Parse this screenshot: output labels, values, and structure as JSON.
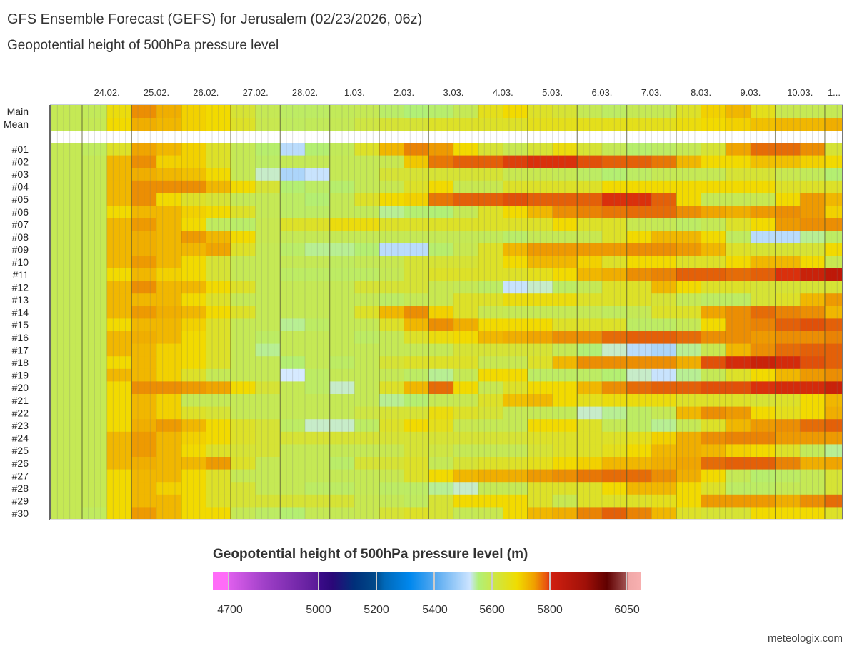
{
  "header": {
    "title": "GFS Ensemble Forecast (GEFS) for Jerusalem (02/23/2026, 06z)",
    "subtitle": "Geopotential height of 500hPa pressure level"
  },
  "footer": {
    "credit": "meteologix.com"
  },
  "chart_data": {
    "type": "heatmap",
    "title": "Geopotential height of 500hPa pressure level (m)",
    "x_tick_labels": [
      "24.02.",
      "25.02.",
      "26.02.",
      "27.02.",
      "28.02.",
      "1.03.",
      "2.03.",
      "3.03.",
      "4.03.",
      "5.03.",
      "6.03.",
      "7.03.",
      "8.03.",
      "9.03.",
      "10.03.",
      "1..."
    ],
    "row_labels": [
      "Main",
      "Mean",
      "#01",
      "#02",
      "#03",
      "#04",
      "#05",
      "#06",
      "#07",
      "#08",
      "#09",
      "#10",
      "#11",
      "#12",
      "#13",
      "#14",
      "#15",
      "#16",
      "#17",
      "#18",
      "#19",
      "#20",
      "#21",
      "#22",
      "#23",
      "#24",
      "#25",
      "#26",
      "#27",
      "#28",
      "#29",
      "#30"
    ],
    "time_resolution": "12-hourly blocks from 23.02. 06z to 11.03.",
    "units": "m",
    "colorbar": {
      "ticks": [
        "4700",
        "5000",
        "5200",
        "5400",
        "5600",
        "5800",
        "6050"
      ],
      "range": [
        4650,
        6100
      ]
    },
    "values": [
      [
        5590,
        5580,
        5650,
        5740,
        5710,
        5670,
        5660,
        5620,
        5590,
        5560,
        5560,
        5580,
        5590,
        5550,
        5520,
        5540,
        5590,
        5640,
        5660,
        5630,
        5620,
        5590,
        5560,
        5590,
        5590,
        5630,
        5670,
        5700,
        5640,
        5600,
        5590,
        5590
      ],
      [
        5590,
        5590,
        5660,
        5710,
        5700,
        5670,
        5660,
        5630,
        5600,
        5570,
        5580,
        5590,
        5610,
        5620,
        5620,
        5630,
        5630,
        5630,
        5630,
        5640,
        5640,
        5640,
        5640,
        5640,
        5640,
        5650,
        5660,
        5670,
        5690,
        5700,
        5700,
        5710
      ],
      [
        5590,
        5570,
        5630,
        5720,
        5700,
        5670,
        5630,
        5590,
        5540,
        5470,
        5530,
        5580,
        5630,
        5700,
        5750,
        5730,
        5660,
        5620,
        5600,
        5620,
        5650,
        5620,
        5590,
        5540,
        5560,
        5590,
        5620,
        5720,
        5770,
        5770,
        5740,
        5620
      ],
      [
        5590,
        5590,
        5700,
        5740,
        5670,
        5670,
        5630,
        5590,
        5560,
        5590,
        5590,
        5590,
        5590,
        5600,
        5680,
        5760,
        5780,
        5780,
        5800,
        5810,
        5810,
        5790,
        5780,
        5780,
        5760,
        5700,
        5660,
        5660,
        5690,
        5690,
        5670,
        5660
      ],
      [
        5590,
        5590,
        5700,
        5710,
        5700,
        5690,
        5660,
        5590,
        5500,
        5460,
        5480,
        5590,
        5590,
        5620,
        5620,
        5620,
        5620,
        5620,
        5600,
        5600,
        5590,
        5560,
        5530,
        5560,
        5590,
        5590,
        5590,
        5620,
        5620,
        5600,
        5580,
        5530
      ],
      [
        5590,
        5590,
        5700,
        5740,
        5740,
        5740,
        5700,
        5660,
        5620,
        5530,
        5560,
        5540,
        5590,
        5600,
        5630,
        5660,
        5600,
        5600,
        5630,
        5630,
        5630,
        5630,
        5660,
        5660,
        5660,
        5660,
        5660,
        5660,
        5660,
        5630,
        5630,
        5630
      ],
      [
        5590,
        5590,
        5700,
        5740,
        5660,
        5630,
        5620,
        5590,
        5590,
        5560,
        5530,
        5590,
        5630,
        5660,
        5670,
        5760,
        5780,
        5780,
        5790,
        5780,
        5780,
        5780,
        5810,
        5810,
        5780,
        5660,
        5590,
        5590,
        5600,
        5660,
        5730,
        5700
      ],
      [
        5590,
        5590,
        5660,
        5700,
        5700,
        5670,
        5660,
        5630,
        5590,
        5560,
        5560,
        5590,
        5580,
        5510,
        5530,
        5520,
        5590,
        5630,
        5660,
        5700,
        5740,
        5750,
        5760,
        5770,
        5770,
        5740,
        5720,
        5710,
        5730,
        5740,
        5730,
        5670
      ],
      [
        5590,
        5590,
        5700,
        5730,
        5700,
        5660,
        5570,
        5550,
        5600,
        5630,
        5630,
        5650,
        5650,
        5630,
        5630,
        5630,
        5630,
        5630,
        5630,
        5630,
        5660,
        5630,
        5630,
        5600,
        5590,
        5560,
        5590,
        5630,
        5660,
        5730,
        5740,
        5740
      ],
      [
        5590,
        5590,
        5700,
        5710,
        5700,
        5730,
        5700,
        5660,
        5600,
        5590,
        5590,
        5590,
        5590,
        5590,
        5590,
        5590,
        5590,
        5580,
        5550,
        5590,
        5590,
        5600,
        5630,
        5660,
        5700,
        5700,
        5660,
        5570,
        5470,
        5470,
        5510,
        5560
      ],
      [
        5590,
        5590,
        5700,
        5710,
        5700,
        5700,
        5720,
        5630,
        5590,
        5550,
        5510,
        5510,
        5530,
        5470,
        5470,
        5540,
        5600,
        5630,
        5700,
        5730,
        5730,
        5730,
        5730,
        5740,
        5740,
        5730,
        5700,
        5630,
        5620,
        5620,
        5620,
        5660
      ],
      [
        5590,
        5590,
        5700,
        5730,
        5700,
        5660,
        5620,
        5590,
        5590,
        5590,
        5590,
        5570,
        5590,
        5600,
        5620,
        5620,
        5620,
        5630,
        5660,
        5700,
        5700,
        5670,
        5630,
        5660,
        5660,
        5630,
        5630,
        5660,
        5700,
        5700,
        5660,
        5600
      ],
      [
        5590,
        5590,
        5660,
        5700,
        5670,
        5660,
        5620,
        5590,
        5590,
        5560,
        5560,
        5560,
        5560,
        5590,
        5620,
        5630,
        5630,
        5630,
        5630,
        5640,
        5660,
        5700,
        5710,
        5740,
        5750,
        5780,
        5780,
        5770,
        5780,
        5810,
        5840,
        5860
      ],
      [
        5590,
        5590,
        5700,
        5740,
        5700,
        5700,
        5660,
        5630,
        5590,
        5590,
        5590,
        5590,
        5620,
        5620,
        5620,
        5600,
        5590,
        5560,
        5480,
        5500,
        5560,
        5590,
        5630,
        5630,
        5700,
        5660,
        5630,
        5630,
        5620,
        5620,
        5620,
        5620
      ],
      [
        5590,
        5590,
        5700,
        5700,
        5700,
        5660,
        5630,
        5590,
        5590,
        5590,
        5590,
        5590,
        5590,
        5560,
        5590,
        5600,
        5630,
        5630,
        5650,
        5650,
        5650,
        5630,
        5630,
        5630,
        5620,
        5590,
        5560,
        5560,
        5620,
        5630,
        5700,
        5730
      ],
      [
        5590,
        5590,
        5700,
        5730,
        5710,
        5700,
        5660,
        5630,
        5590,
        5590,
        5590,
        5590,
        5630,
        5700,
        5740,
        5670,
        5630,
        5600,
        5590,
        5590,
        5590,
        5590,
        5570,
        5590,
        5630,
        5630,
        5720,
        5740,
        5770,
        5750,
        5740,
        5700
      ],
      [
        5590,
        5590,
        5660,
        5700,
        5700,
        5670,
        5630,
        5590,
        5590,
        5510,
        5560,
        5590,
        5590,
        5630,
        5700,
        5740,
        5710,
        5660,
        5660,
        5660,
        5630,
        5630,
        5630,
        5560,
        5560,
        5590,
        5660,
        5740,
        5750,
        5780,
        5790,
        5780
      ],
      [
        5590,
        5590,
        5700,
        5710,
        5700,
        5660,
        5630,
        5590,
        5560,
        5590,
        5590,
        5590,
        5560,
        5590,
        5630,
        5650,
        5660,
        5700,
        5710,
        5720,
        5740,
        5740,
        5770,
        5780,
        5780,
        5770,
        5740,
        5740,
        5730,
        5740,
        5740,
        5750
      ],
      [
        5590,
        5590,
        5700,
        5700,
        5670,
        5660,
        5630,
        5590,
        5510,
        5590,
        5590,
        5590,
        5590,
        5590,
        5590,
        5590,
        5620,
        5620,
        5620,
        5620,
        5590,
        5520,
        5500,
        5470,
        5460,
        5510,
        5600,
        5700,
        5740,
        5770,
        5780,
        5780
      ],
      [
        5590,
        5590,
        5660,
        5700,
        5670,
        5660,
        5630,
        5590,
        5590,
        5530,
        5590,
        5560,
        5590,
        5620,
        5630,
        5630,
        5630,
        5600,
        5600,
        5630,
        5700,
        5740,
        5740,
        5740,
        5740,
        5710,
        5790,
        5820,
        5840,
        5820,
        5790,
        5780
      ],
      [
        5590,
        5590,
        5700,
        5700,
        5670,
        5630,
        5590,
        5590,
        5590,
        5490,
        5560,
        5590,
        5590,
        5590,
        5560,
        5510,
        5590,
        5660,
        5660,
        5560,
        5560,
        5560,
        5530,
        5500,
        5480,
        5510,
        5590,
        5630,
        5660,
        5700,
        5730,
        5740
      ],
      [
        5590,
        5590,
        5660,
        5740,
        5740,
        5730,
        5720,
        5660,
        5620,
        5590,
        5560,
        5500,
        5590,
        5630,
        5700,
        5770,
        5660,
        5600,
        5630,
        5660,
        5660,
        5700,
        5740,
        5770,
        5780,
        5780,
        5790,
        5790,
        5810,
        5820,
        5820,
        5840
      ],
      [
        5590,
        5590,
        5660,
        5700,
        5670,
        5590,
        5590,
        5590,
        5590,
        5590,
        5590,
        5590,
        5590,
        5510,
        5530,
        5590,
        5600,
        5630,
        5690,
        5700,
        5660,
        5640,
        5650,
        5650,
        5650,
        5630,
        5630,
        5630,
        5620,
        5630,
        5660,
        5700
      ],
      [
        5590,
        5590,
        5660,
        5700,
        5670,
        5630,
        5620,
        5590,
        5590,
        5590,
        5590,
        5590,
        5610,
        5620,
        5620,
        5650,
        5630,
        5620,
        5590,
        5590,
        5580,
        5500,
        5510,
        5560,
        5590,
        5700,
        5740,
        5730,
        5660,
        5640,
        5660,
        5710
      ],
      [
        5590,
        5590,
        5660,
        5710,
        5730,
        5700,
        5660,
        5630,
        5620,
        5560,
        5500,
        5500,
        5560,
        5630,
        5660,
        5640,
        5600,
        5590,
        5590,
        5660,
        5660,
        5630,
        5590,
        5560,
        5510,
        5590,
        5630,
        5700,
        5730,
        5740,
        5770,
        5780
      ],
      [
        5590,
        5590,
        5700,
        5730,
        5700,
        5670,
        5660,
        5630,
        5620,
        5620,
        5620,
        5620,
        5620,
        5620,
        5620,
        5620,
        5620,
        5620,
        5620,
        5630,
        5630,
        5630,
        5630,
        5640,
        5670,
        5710,
        5740,
        5750,
        5750,
        5730,
        5730,
        5730
      ],
      [
        5590,
        5590,
        5700,
        5730,
        5700,
        5660,
        5630,
        5620,
        5620,
        5590,
        5590,
        5590,
        5590,
        5600,
        5620,
        5610,
        5590,
        5590,
        5590,
        5620,
        5630,
        5630,
        5640,
        5660,
        5700,
        5710,
        5700,
        5670,
        5660,
        5630,
        5580,
        5510
      ],
      [
        5590,
        5590,
        5700,
        5710,
        5700,
        5700,
        5730,
        5630,
        5590,
        5590,
        5590,
        5550,
        5620,
        5620,
        5630,
        5590,
        5620,
        5630,
        5630,
        5640,
        5660,
        5670,
        5700,
        5700,
        5710,
        5720,
        5770,
        5780,
        5780,
        5750,
        5710,
        5720
      ],
      [
        5590,
        5590,
        5660,
        5700,
        5700,
        5660,
        5630,
        5590,
        5590,
        5590,
        5590,
        5590,
        5590,
        5600,
        5630,
        5660,
        5700,
        5710,
        5710,
        5730,
        5740,
        5760,
        5770,
        5770,
        5740,
        5710,
        5660,
        5590,
        5540,
        5560,
        5590,
        5620
      ],
      [
        5590,
        5590,
        5660,
        5700,
        5670,
        5660,
        5630,
        5620,
        5590,
        5590,
        5560,
        5560,
        5590,
        5560,
        5560,
        5510,
        5500,
        5590,
        5590,
        5630,
        5630,
        5630,
        5660,
        5700,
        5700,
        5660,
        5630,
        5560,
        5560,
        5590,
        5590,
        5620
      ],
      [
        5590,
        5590,
        5660,
        5700,
        5700,
        5660,
        5630,
        5620,
        5620,
        5620,
        5620,
        5620,
        5600,
        5590,
        5570,
        5620,
        5660,
        5660,
        5660,
        5630,
        5600,
        5630,
        5630,
        5630,
        5640,
        5660,
        5730,
        5730,
        5730,
        5710,
        5740,
        5770
      ],
      [
        5590,
        5570,
        5660,
        5730,
        5700,
        5660,
        5660,
        5590,
        5560,
        5530,
        5590,
        5590,
        5600,
        5620,
        5630,
        5620,
        5590,
        5600,
        5660,
        5700,
        5710,
        5750,
        5780,
        5750,
        5700,
        5630,
        5620,
        5620,
        5660,
        5660,
        5660,
        5630
      ]
    ]
  }
}
